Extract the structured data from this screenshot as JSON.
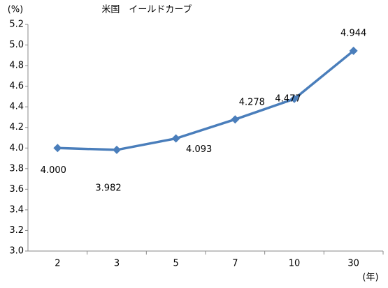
{
  "chart_data": {
    "type": "line",
    "title": "米国　イールドカーブ",
    "y_label": "(%)",
    "x_label": "(年)",
    "categories": [
      "2",
      "3",
      "5",
      "7",
      "10",
      "30"
    ],
    "series": [
      {
        "name": "米国",
        "color": "#4a7ebb",
        "values": [
          4.0,
          3.982,
          4.093,
          4.278,
          4.477,
          4.944
        ],
        "value_labels": [
          "4.000",
          "3.982",
          "4.093",
          "4.278",
          "4.477",
          "4.944"
        ]
      }
    ],
    "ylim": [
      3.0,
      5.2
    ],
    "yticks": [
      {
        "value": 3.0,
        "label": "3.0"
      },
      3.2,
      3.4,
      3.6,
      3.8,
      {
        "value": 4.0,
        "label": "4.0"
      },
      4.2,
      4.4,
      4.6,
      4.8,
      {
        "value": 5.0,
        "label": "5.0"
      },
      5.2
    ],
    "grid": false,
    "legend": false
  }
}
